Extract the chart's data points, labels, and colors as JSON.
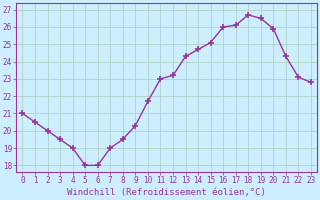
{
  "x": [
    0,
    1,
    2,
    3,
    4,
    5,
    6,
    7,
    8,
    9,
    10,
    11,
    12,
    13,
    14,
    15,
    16,
    17,
    18,
    19,
    20,
    21,
    22,
    23
  ],
  "y": [
    21.0,
    20.5,
    20.0,
    19.5,
    19.0,
    18.0,
    18.0,
    19.0,
    19.5,
    20.3,
    21.7,
    23.0,
    23.2,
    24.3,
    24.7,
    25.1,
    26.0,
    26.1,
    26.7,
    26.5,
    25.9,
    24.3,
    23.1,
    22.8
  ],
  "line_color": "#993399",
  "marker": "+",
  "marker_size": 4,
  "marker_lw": 1.2,
  "line_width": 1.0,
  "bg_color": "#cceeff",
  "grid_color": "#aaccbb",
  "xlabel": "Windchill (Refroidissement éolien,°C)",
  "ylabel_ticks": [
    18,
    19,
    20,
    21,
    22,
    23,
    24,
    25,
    26,
    27
  ],
  "xtick_labels": [
    "0",
    "1",
    "2",
    "3",
    "4",
    "5",
    "6",
    "7",
    "8",
    "9",
    "10",
    "11",
    "12",
    "13",
    "14",
    "15",
    "16",
    "17",
    "18",
    "19",
    "20",
    "21",
    "22",
    "23"
  ],
  "ylim": [
    17.6,
    27.4
  ],
  "xlim": [
    -0.5,
    23.5
  ],
  "axis_label_color": "#993399",
  "tick_color": "#993399",
  "spine_color": "#993399",
  "xlabel_fontsize": 6.5,
  "tick_fontsize": 5.5
}
